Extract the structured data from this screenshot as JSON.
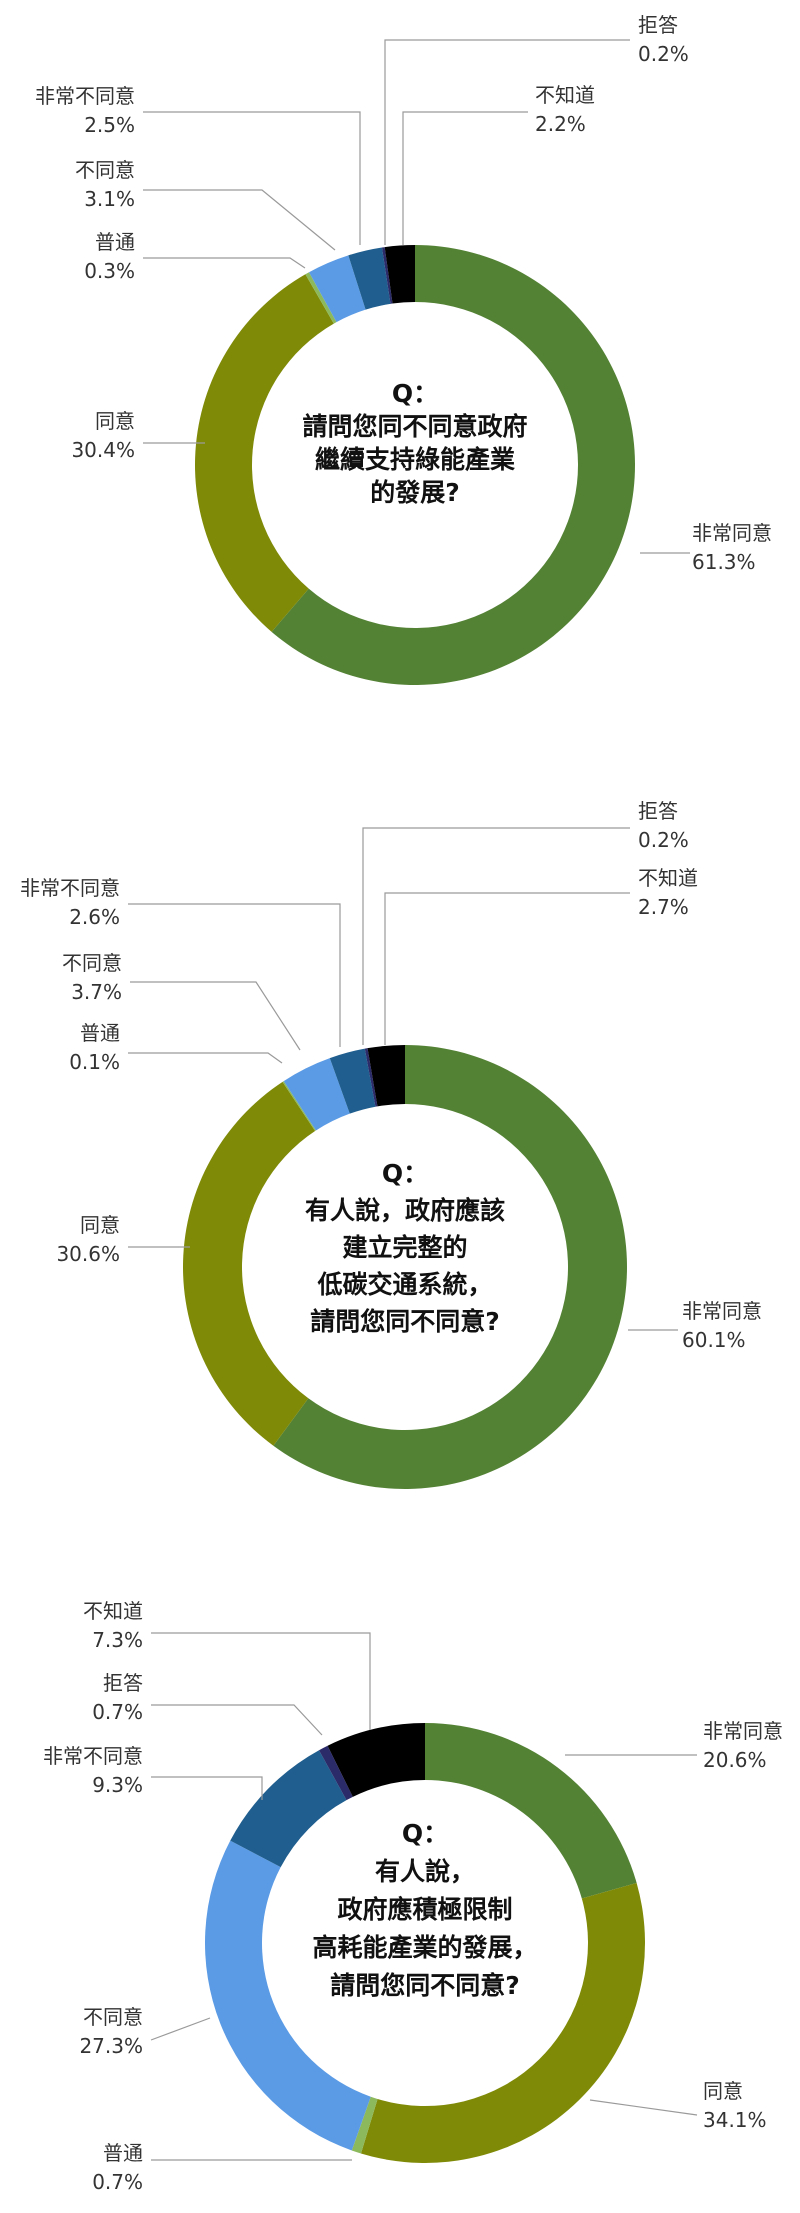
{
  "colors": {
    "strongly_agree": "#548235",
    "agree": "#7F8A07",
    "neutral": "#8DB95D",
    "disagree": "#5B9BE5",
    "strongly_disagree": "#1F5E8E",
    "refused": "#2B2B6A",
    "dont_know": "#000000"
  },
  "chart_data": [
    {
      "type": "pie",
      "donut": true,
      "question": [
        "Q：",
        "請問您同不同意政府",
        "繼續支持綠能產業",
        "的發展?"
      ],
      "slices": [
        {
          "key": "strongly_agree",
          "label": "非常同意",
          "value": "61.3%",
          "pct": 61.3,
          "color": "#548235"
        },
        {
          "key": "agree",
          "label": "同意",
          "value": "30.4%",
          "pct": 30.4,
          "color": "#7F8A07"
        },
        {
          "key": "neutral",
          "label": "普通",
          "value": "0.3%",
          "pct": 0.3,
          "color": "#8DB95D"
        },
        {
          "key": "disagree",
          "label": "不同意",
          "value": "3.1%",
          "pct": 3.1,
          "color": "#5B9BE5"
        },
        {
          "key": "strongly_disagree",
          "label": "非常不同意",
          "value": "2.5%",
          "pct": 2.5,
          "color": "#1F5E8E"
        },
        {
          "key": "refused",
          "label": "拒答",
          "value": "0.2%",
          "pct": 0.2,
          "color": "#2B2B6A"
        },
        {
          "key": "dont_know",
          "label": "不知道",
          "value": "2.2%",
          "pct": 2.2,
          "color": "#000000"
        }
      ]
    },
    {
      "type": "pie",
      "donut": true,
      "question": [
        "Q：",
        "有人說，政府應該",
        "建立完整的",
        "低碳交通系統，",
        "請問您同不同意?"
      ],
      "slices": [
        {
          "key": "strongly_agree",
          "label": "非常同意",
          "value": "60.1%",
          "pct": 60.1,
          "color": "#548235"
        },
        {
          "key": "agree",
          "label": "同意",
          "value": "30.6%",
          "pct": 30.6,
          "color": "#7F8A07"
        },
        {
          "key": "neutral",
          "label": "普通",
          "value": "0.1%",
          "pct": 0.1,
          "color": "#8DB95D"
        },
        {
          "key": "disagree",
          "label": "不同意",
          "value": "3.7%",
          "pct": 3.7,
          "color": "#5B9BE5"
        },
        {
          "key": "strongly_disagree",
          "label": "非常不同意",
          "value": "2.6%",
          "pct": 2.6,
          "color": "#1F5E8E"
        },
        {
          "key": "refused",
          "label": "拒答",
          "value": "0.2%",
          "pct": 0.2,
          "color": "#2B2B6A"
        },
        {
          "key": "dont_know",
          "label": "不知道",
          "value": "2.7%",
          "pct": 2.7,
          "color": "#000000"
        }
      ]
    },
    {
      "type": "pie",
      "donut": true,
      "question": [
        "Q：",
        "有人說，",
        "政府應積極限制",
        "高耗能產業的發展，",
        "請問您同不同意?"
      ],
      "slices": [
        {
          "key": "strongly_agree",
          "label": "非常同意",
          "value": "20.6%",
          "pct": 20.6,
          "color": "#548235"
        },
        {
          "key": "agree",
          "label": "同意",
          "value": "34.1%",
          "pct": 34.1,
          "color": "#7F8A07"
        },
        {
          "key": "neutral",
          "label": "普通",
          "value": "0.7%",
          "pct": 0.7,
          "color": "#8DB95D"
        },
        {
          "key": "disagree",
          "label": "不同意",
          "value": "27.3%",
          "pct": 27.3,
          "color": "#5B9BE5"
        },
        {
          "key": "strongly_disagree",
          "label": "非常不同意",
          "value": "9.3%",
          "pct": 9.3,
          "color": "#1F5E8E"
        },
        {
          "key": "refused",
          "label": "拒答",
          "value": "0.7%",
          "pct": 0.7,
          "color": "#2B2B6A"
        },
        {
          "key": "dont_know",
          "label": "不知道",
          "value": "7.3%",
          "pct": 7.3,
          "color": "#000000"
        }
      ]
    }
  ]
}
